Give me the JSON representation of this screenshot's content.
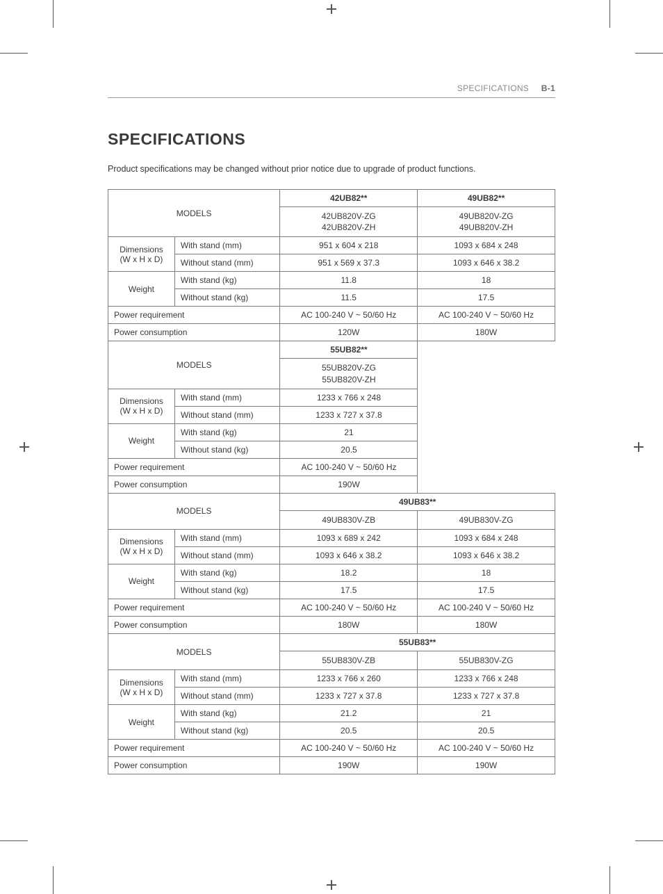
{
  "header": {
    "section": "SPECIFICATIONS",
    "page": "B-1"
  },
  "title": "SPECIFICATIONS",
  "intro": "Product specifications may be changed without prior notice due to upgrade of product functions.",
  "labels": {
    "models": "MODELS",
    "dimensions": "Dimensions",
    "dimensions_sub": "(W x H x D)",
    "with_stand_mm": "With stand (mm)",
    "without_stand_mm": "Without stand (mm)",
    "weight": "Weight",
    "with_stand_kg": "With stand (kg)",
    "without_stand_kg": "Without stand (kg)",
    "power_req": "Power requirement",
    "power_cons": "Power consumption"
  },
  "block1": {
    "cols": [
      {
        "series": "42UB82**",
        "variants": "42UB820V-ZG\n42UB820V-ZH"
      },
      {
        "series": "49UB82**",
        "variants": "49UB820V-ZG\n49UB820V-ZH"
      }
    ],
    "rows": {
      "dim_ws": [
        "951 x 604 x 218",
        "1093 x 684 x 248"
      ],
      "dim_wos": [
        "951 x 569 x 37.3",
        "1093 x 646 x 38.2"
      ],
      "wt_ws": [
        "11.8",
        "18"
      ],
      "wt_wos": [
        "11.5",
        "17.5"
      ],
      "preq": [
        "AC 100-240 V ~ 50/60 Hz",
        "AC 100-240 V ~ 50/60 Hz"
      ],
      "pcons": [
        "120W",
        "180W"
      ]
    }
  },
  "block2": {
    "cols": [
      {
        "series": "55UB82**",
        "variants": "55UB820V-ZG\n55UB820V-ZH"
      }
    ],
    "rows": {
      "dim_ws": [
        "1233 x 766 x 248"
      ],
      "dim_wos": [
        "1233 x 727 x 37.8"
      ],
      "wt_ws": [
        "21"
      ],
      "wt_wos": [
        "20.5"
      ],
      "preq": [
        "AC 100-240 V ~ 50/60 Hz"
      ],
      "pcons": [
        "190W"
      ]
    }
  },
  "block3": {
    "series": "49UB83**",
    "cols": [
      {
        "variants": "49UB830V-ZB"
      },
      {
        "variants": "49UB830V-ZG"
      }
    ],
    "rows": {
      "dim_ws": [
        "1093 x 689 x 242",
        "1093 x 684 x 248"
      ],
      "dim_wos": [
        "1093 x 646 x 38.2",
        "1093 x 646 x 38.2"
      ],
      "wt_ws": [
        "18.2",
        "18"
      ],
      "wt_wos": [
        "17.5",
        "17.5"
      ],
      "preq": [
        "AC 100-240 V ~ 50/60 Hz",
        "AC 100-240 V ~ 50/60 Hz"
      ],
      "pcons": [
        "180W",
        "180W"
      ]
    }
  },
  "block4": {
    "series": "55UB83**",
    "cols": [
      {
        "variants": "55UB830V-ZB"
      },
      {
        "variants": "55UB830V-ZG"
      }
    ],
    "rows": {
      "dim_ws": [
        "1233 x 766 x 260",
        "1233 x 766 x 248"
      ],
      "dim_wos": [
        "1233 x 727 x 37.8",
        "1233 x 727 x 37.8"
      ],
      "wt_ws": [
        "21.2",
        "21"
      ],
      "wt_wos": [
        "20.5",
        "20.5"
      ],
      "preq": [
        "AC 100-240 V ~ 50/60 Hz",
        "AC 100-240 V ~ 50/60 Hz"
      ],
      "pcons": [
        "190W",
        "190W"
      ]
    }
  }
}
